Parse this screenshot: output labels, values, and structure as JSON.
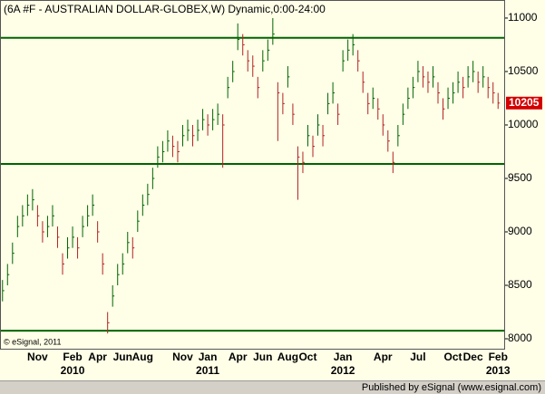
{
  "chart_data": {
    "type": "ohlc",
    "title": "(6A #F - AUSTRALIAN DOLLAR-GLOBEX,W) Dynamic,0:00-24:00",
    "annotation": "© eSignal, 2011",
    "categories": [
      null,
      null,
      null,
      null,
      null,
      null,
      null,
      "Nov",
      null,
      null,
      null,
      null,
      null,
      null,
      "Feb\n2010",
      null,
      null,
      null,
      null,
      "Apr",
      null,
      null,
      null,
      null,
      "Jun",
      null,
      null,
      null,
      "Aug",
      null,
      null,
      null,
      null,
      null,
      null,
      null,
      "Nov",
      null,
      null,
      null,
      null,
      "Jan\n2011",
      null,
      null,
      null,
      null,
      null,
      "Apr",
      null,
      null,
      null,
      null,
      "Jun",
      null,
      null,
      null,
      null,
      "Aug",
      null,
      null,
      null,
      "Oct",
      null,
      null,
      null,
      null,
      null,
      null,
      "Jan\n2012",
      null,
      null,
      null,
      null,
      null,
      null,
      null,
      "Apr",
      null,
      null,
      null,
      null,
      null,
      null,
      "Jul",
      null,
      null,
      null,
      null,
      null,
      null,
      "Oct",
      null,
      null,
      null,
      "Dec",
      null,
      null,
      null,
      null,
      "Feb\n2013"
    ],
    "high": [
      8550,
      8700,
      8900,
      9150,
      9250,
      9350,
      9400,
      9250,
      9100,
      9150,
      9250,
      9050,
      8800,
      8950,
      9050,
      8950,
      9150,
      9250,
      9350,
      9100,
      8800,
      8250,
      8500,
      8700,
      8800,
      9000,
      8950,
      9200,
      9350,
      9450,
      9600,
      9800,
      9850,
      9950,
      9900,
      9850,
      10000,
      10050,
      10000,
      10050,
      10150,
      10100,
      10150,
      10200,
      10100,
      10450,
      10600,
      10950,
      10850,
      10700,
      10650,
      10450,
      10700,
      10800,
      11000,
      10400,
      10300,
      10550,
      10200,
      9800,
      9750,
      10000,
      9900,
      10100,
      10000,
      10300,
      10400,
      10200,
      10700,
      10800,
      10850,
      10700,
      10500,
      10300,
      10350,
      10250,
      10100,
      9950,
      9750,
      10000,
      10200,
      10350,
      10450,
      10600,
      10550,
      10500,
      10550,
      10400,
      10250,
      10350,
      10400,
      10500,
      10450,
      10550,
      10600,
      10500,
      10550,
      10450,
      10400,
      10300
    ],
    "low": [
      8350,
      8500,
      8700,
      8950,
      9050,
      9150,
      9200,
      9050,
      8900,
      8950,
      9050,
      8850,
      8600,
      8750,
      8850,
      8750,
      8950,
      9050,
      9150,
      8900,
      8600,
      8050,
      8300,
      8500,
      8600,
      8800,
      8750,
      9000,
      9150,
      9250,
      9400,
      9600,
      9650,
      9750,
      9700,
      9650,
      9800,
      9850,
      9800,
      9850,
      9950,
      9900,
      9950,
      10000,
      9600,
      10250,
      10400,
      10700,
      10650,
      10500,
      10450,
      10250,
      10500,
      10600,
      10750,
      9850,
      10100,
      10350,
      10000,
      9300,
      9550,
      9800,
      9700,
      9900,
      9800,
      10100,
      10200,
      10000,
      10500,
      10600,
      10650,
      10500,
      10300,
      10100,
      10150,
      10050,
      9900,
      9750,
      9550,
      9800,
      10000,
      10150,
      10250,
      10400,
      10350,
      10300,
      10350,
      10200,
      10050,
      10150,
      10200,
      10300,
      10250,
      10350,
      10400,
      10300,
      10350,
      10250,
      10200,
      10150
    ],
    "close": [
      8450,
      8600,
      8800,
      9050,
      9150,
      9250,
      9300,
      9150,
      9000,
      9050,
      9150,
      8950,
      8700,
      8850,
      8950,
      8850,
      9050,
      9150,
      9250,
      9000,
      8700,
      8150,
      8400,
      8600,
      8700,
      8900,
      8850,
      9100,
      9250,
      9350,
      9500,
      9700,
      9750,
      9850,
      9800,
      9750,
      9900,
      9950,
      9900,
      9950,
      10050,
      10000,
      10050,
      10100,
      10000,
      10350,
      10500,
      10800,
      10750,
      10600,
      10550,
      10350,
      10600,
      10700,
      10850,
      10300,
      10200,
      10450,
      10100,
      9700,
      9650,
      9900,
      9800,
      10000,
      9900,
      10200,
      10300,
      10100,
      10600,
      10700,
      10750,
      10600,
      10400,
      10200,
      10250,
      10150,
      10000,
      9850,
      9650,
      9900,
      10100,
      10250,
      10350,
      10500,
      10450,
      10400,
      10450,
      10300,
      10150,
      10250,
      10300,
      10400,
      10350,
      10450,
      10500,
      10400,
      10450,
      10350,
      10300,
      10205
    ],
    "up_color": "#006400",
    "down_color": "#b22222",
    "last_price_color": "#d40000",
    "ylim": [
      7907,
      11169
    ],
    "yticks": [
      8000,
      8500,
      9000,
      9500,
      10000,
      10500,
      11000
    ],
    "reference_lines": {
      "values": [
        10815,
        9635,
        8075
      ],
      "color": "#006400"
    }
  },
  "footer": "Published by eSignal (www.esignal.com)"
}
